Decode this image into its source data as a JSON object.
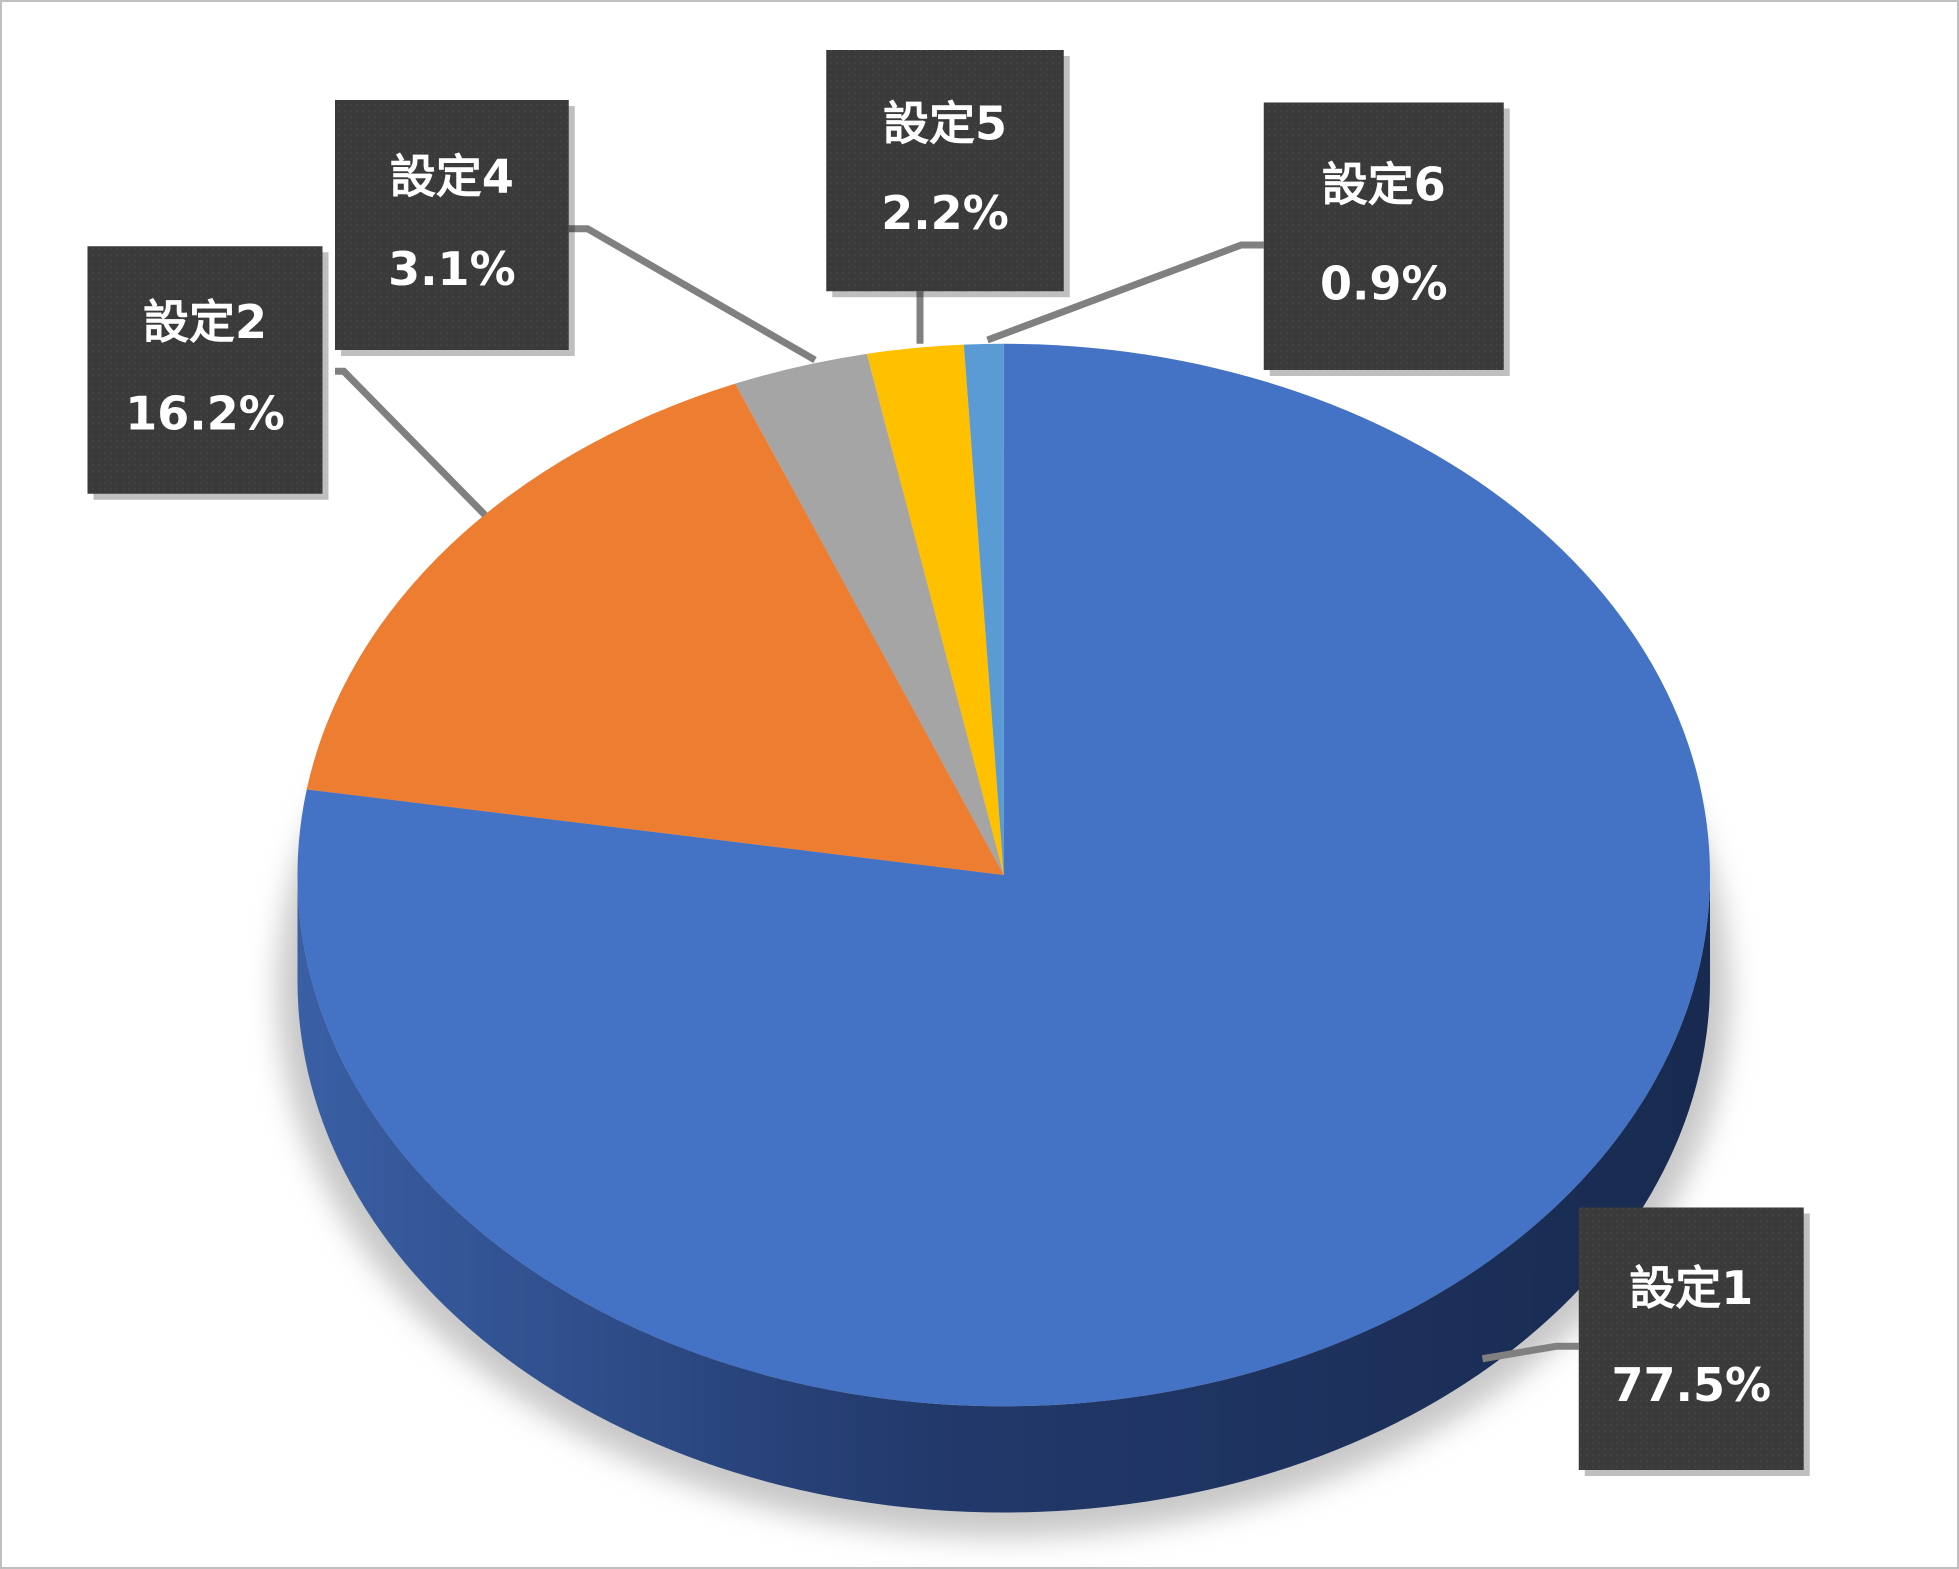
{
  "chart_data": {
    "type": "pie",
    "categories": [
      "設定1",
      "設定2",
      "設定4",
      "設定5",
      "設定6"
    ],
    "values": [
      77.5,
      16.2,
      3.1,
      2.2,
      0.9
    ],
    "value_labels": [
      "77.5%",
      "16.2%",
      "3.1%",
      "2.2%",
      "0.9%"
    ],
    "colors": [
      "#4472c4",
      "#ed7d31",
      "#a5a5a5",
      "#ffc000",
      "#5b9bd5"
    ]
  }
}
